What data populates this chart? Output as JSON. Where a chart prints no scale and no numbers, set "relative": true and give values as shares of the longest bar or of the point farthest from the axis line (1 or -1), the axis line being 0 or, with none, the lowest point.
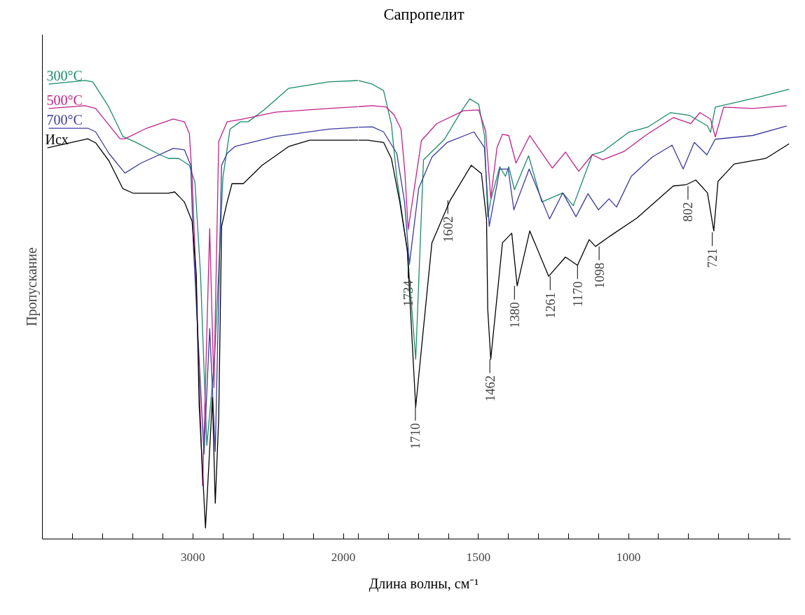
{
  "chart_data": [
    {
      "type": "line",
      "xlabel": "Длина волны, см⁻¹",
      "ylabel": "Пропускание",
      "relative": true,
      "grid": false,
      "legend": false,
      "marker": "none",
      "line_style": "solid",
      "xlim": [
        4000,
        1900
      ],
      "xticks": [
        {
          "value": 3800,
          "label": null
        },
        {
          "value": 3600,
          "label": null
        },
        {
          "value": 3400,
          "label": null
        },
        {
          "value": 3200,
          "label": null
        },
        3000,
        {
          "value": 2800,
          "label": null
        },
        {
          "value": 2600,
          "label": null
        },
        {
          "value": 2400,
          "label": null
        },
        {
          "value": 2200,
          "label": null
        },
        2000
      ],
      "series": [
        {
          "name": "300°C",
          "color": "#1a8a6a",
          "x": [
            3958,
            3716,
            3665,
            3558,
            3465,
            3377,
            3237,
            3163,
            3093,
            3023,
            2986,
            2949,
            2907,
            2856,
            2800,
            2753,
            2684,
            2633,
            2526,
            2363,
            2098,
            1900
          ],
          "values": [
            0.992,
            1.0,
            0.997,
            0.942,
            0.878,
            0.865,
            0.841,
            0.83,
            0.83,
            0.815,
            0.778,
            0.577,
            0.204,
            0.39,
            0.789,
            0.894,
            0.91,
            0.91,
            0.936,
            0.983,
            0.997,
            1.0
          ]
        },
        {
          "name": "500°C",
          "color": "#c0208a",
          "x": [
            3958,
            3716,
            3646,
            3484,
            3451,
            3307,
            3130,
            3056,
            3023,
            3005,
            2986,
            2935,
            2888,
            2860,
            2828,
            2772,
            2665,
            2451,
            2098,
            1900
          ],
          "values": [
            0.939,
            0.945,
            0.939,
            0.873,
            0.873,
            0.896,
            0.916,
            0.91,
            0.884,
            0.789,
            0.63,
            0.116,
            0.677,
            0.33,
            0.867,
            0.91,
            0.916,
            0.931,
            0.939,
            0.943
          ]
        },
        {
          "name": "700°C",
          "color": "#3a3aa0",
          "x": [
            3958,
            3698,
            3646,
            3558,
            3451,
            3344,
            3130,
            3056,
            3014,
            2995,
            2926,
            2888,
            2851,
            2809,
            2772,
            2721,
            2451,
            2098,
            1900
          ],
          "values": [
            0.896,
            0.896,
            0.888,
            0.841,
            0.798,
            0.82,
            0.852,
            0.849,
            0.815,
            0.63,
            0.185,
            0.459,
            0.191,
            0.815,
            0.841,
            0.856,
            0.878,
            0.894,
            0.898
          ]
        },
        {
          "name": "Исх",
          "color": "#000000",
          "x": [
            3967,
            3698,
            3646,
            3558,
            3465,
            3395,
            3163,
            3121,
            3056,
            3005,
            2977,
            2958,
            2916,
            2870,
            2851,
            2828,
            2809,
            2772,
            2740,
            2665,
            2540,
            2363,
            2223,
            1900
          ],
          "values": [
            0.853,
            0.873,
            0.864,
            0.825,
            0.764,
            0.754,
            0.754,
            0.757,
            0.735,
            0.693,
            0.577,
            0.291,
            0.024,
            0.309,
            0.078,
            0.265,
            0.682,
            0.735,
            0.775,
            0.775,
            0.815,
            0.856,
            0.87,
            0.87
          ]
        }
      ]
    },
    {
      "type": "line",
      "title": "Сапропелит",
      "relative": true,
      "tick_labels": "x",
      "grid": false,
      "legend": false,
      "marker": "none",
      "line_style": "solid",
      "xlim": [
        1900,
        460
      ],
      "xticks": [
        {
          "value": 1900,
          "label": null
        },
        {
          "value": 1800,
          "label": null
        },
        {
          "value": 1700,
          "label": null
        },
        {
          "value": 1600,
          "label": null
        },
        1500,
        {
          "value": 1400,
          "label": null
        },
        {
          "value": 1300,
          "label": null
        },
        {
          "value": 1200,
          "label": null
        },
        {
          "value": 1100,
          "label": null
        },
        1000,
        {
          "value": 900,
          "label": null
        },
        {
          "value": 800,
          "label": null
        },
        {
          "value": 700,
          "label": null
        },
        {
          "value": 600,
          "label": null
        },
        {
          "value": 500,
          "label": null
        }
      ],
      "series": [
        {
          "color": "#1a8a6a",
          "x": [
            1900,
            1853,
            1816,
            1790,
            1772,
            1737,
            1709,
            1683,
            1613,
            1559,
            1529,
            1499,
            1480,
            1469,
            1459,
            1429,
            1410,
            1399,
            1380,
            1333,
            1289,
            1219,
            1184,
            1121,
            1086,
            1000,
            937,
            860,
            797,
            737,
            727,
            711,
            657,
            571,
            465
          ],
          "values": [
            1.0,
            0.992,
            0.978,
            0.905,
            0.789,
            0.63,
            0.392,
            0.827,
            0.872,
            0.931,
            0.96,
            0.948,
            0.88,
            0.703,
            0.739,
            0.812,
            0.791,
            0.812,
            0.762,
            0.836,
            0.735,
            0.755,
            0.727,
            0.838,
            0.845,
            0.887,
            0.898,
            0.93,
            0.924,
            0.901,
            0.887,
            0.942,
            0.95,
            0.963,
            0.981
          ]
        },
        {
          "color": "#c0208a",
          "x": [
            1900,
            1853,
            1807,
            1781,
            1758,
            1745,
            1734,
            1690,
            1639,
            1550,
            1499,
            1476,
            1459,
            1438,
            1420,
            1399,
            1375,
            1329,
            1254,
            1210,
            1166,
            1121,
            1086,
            1016,
            937,
            851,
            793,
            762,
            727,
            711,
            683,
            587,
            473
          ],
          "values": [
            0.943,
            0.945,
            0.942,
            0.925,
            0.894,
            0.8,
            0.675,
            0.869,
            0.906,
            0.934,
            0.936,
            0.89,
            0.744,
            0.854,
            0.883,
            0.88,
            0.82,
            0.88,
            0.809,
            0.844,
            0.802,
            0.838,
            0.827,
            0.845,
            0.883,
            0.919,
            0.906,
            0.93,
            0.916,
            0.877,
            0.942,
            0.939,
            0.945
          ]
        },
        {
          "color": "#3a3aa0",
          "x": [
            1900,
            1853,
            1816,
            1772,
            1746,
            1730,
            1699,
            1655,
            1604,
            1515,
            1480,
            1464,
            1429,
            1401,
            1382,
            1331,
            1263,
            1219,
            1175,
            1135,
            1100,
            1065,
            1040,
            991,
            921,
            855,
            818,
            781,
            739,
            711,
            587,
            473
          ],
          "values": [
            0.898,
            0.899,
            0.888,
            0.841,
            0.735,
            0.599,
            0.765,
            0.833,
            0.865,
            0.888,
            0.854,
            0.682,
            0.807,
            0.807,
            0.718,
            0.807,
            0.698,
            0.755,
            0.703,
            0.753,
            0.718,
            0.742,
            0.724,
            0.791,
            0.833,
            0.859,
            0.807,
            0.865,
            0.838,
            0.872,
            0.88,
            0.901
          ]
        },
        {
          "color": "#000000",
          "x": [
            1900,
            1869,
            1816,
            1790,
            1762,
            1737,
            1709,
            1655,
            1594,
            1524,
            1490,
            1473,
            1469,
            1459,
            1420,
            1389,
            1371,
            1329,
            1266,
            1210,
            1170,
            1131,
            1110,
            1061,
            972,
            851,
            807,
            776,
            737,
            716,
            702,
            648,
            543,
            465
          ],
          "values": [
            0.87,
            0.87,
            0.865,
            0.83,
            0.735,
            0.63,
            0.288,
            0.646,
            0.739,
            0.815,
            0.797,
            0.697,
            0.501,
            0.392,
            0.646,
            0.667,
            0.552,
            0.672,
            0.573,
            0.615,
            0.597,
            0.653,
            0.638,
            0.661,
            0.7,
            0.77,
            0.773,
            0.783,
            0.755,
            0.672,
            0.78,
            0.818,
            0.83,
            0.862
          ]
        }
      ],
      "annotations": [
        {
          "text": "1734",
          "x": 1734,
          "y": 0.599
        },
        {
          "text": "1710",
          "x": 1710,
          "y": 0.288
        },
        {
          "text": "1602",
          "x": 1602,
          "y": 0.739
        },
        {
          "text": "1462",
          "x": 1462,
          "y": 0.392
        },
        {
          "text": "1380",
          "x": 1380,
          "y": 0.552
        },
        {
          "text": "1261",
          "x": 1261,
          "y": 0.573
        },
        {
          "text": "1170",
          "x": 1170,
          "y": 0.597
        },
        {
          "text": "1098",
          "x": 1098,
          "y": 0.638
        },
        {
          "text": "802",
          "x": 802,
          "y": 0.77
        },
        {
          "text": "721",
          "x": 721,
          "y": 0.669
        }
      ]
    }
  ]
}
